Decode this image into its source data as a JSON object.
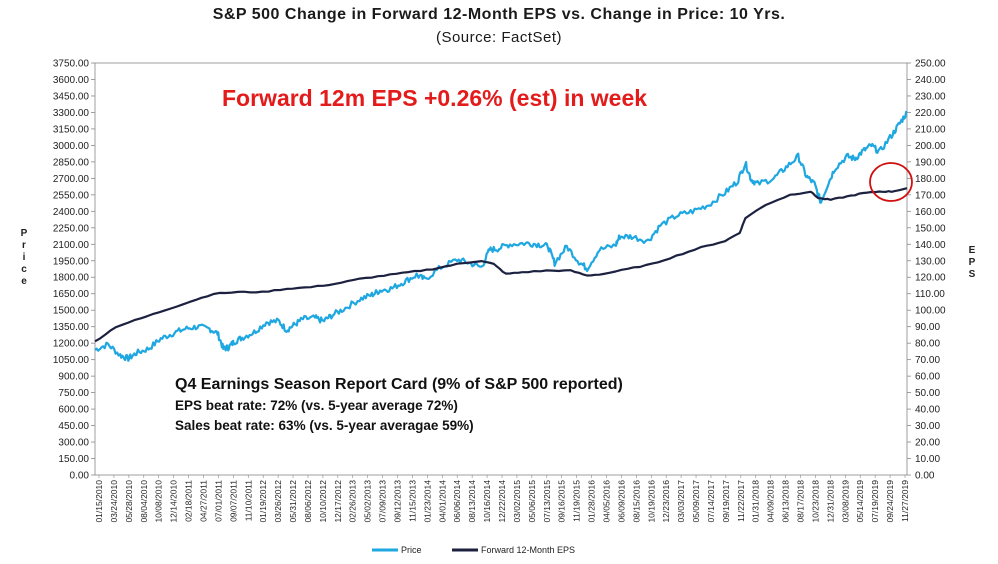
{
  "chart_data": {
    "type": "line",
    "title": "S&P 500 Change in Forward 12-Month EPS vs. Change in Price: 10 Yrs.",
    "subtitle": "(Source: FactSet)",
    "ylabel_left": "Price",
    "ylabel_right": "EPS",
    "ylim_left": [
      0,
      3750
    ],
    "ylim_right": [
      0,
      250
    ],
    "left_ticks": [
      "0.00",
      "150.00",
      "300.00",
      "450.00",
      "600.00",
      "750.00",
      "900.00",
      "1050.00",
      "1200.00",
      "1350.00",
      "1500.00",
      "1650.00",
      "1800.00",
      "1950.00",
      "2100.00",
      "2250.00",
      "2400.00",
      "2550.00",
      "2700.00",
      "2850.00",
      "3000.00",
      "3150.00",
      "3300.00",
      "3450.00",
      "3600.00",
      "3750.00"
    ],
    "right_ticks": [
      "0.00",
      "10.00",
      "20.00",
      "30.00",
      "40.00",
      "50.00",
      "60.00",
      "70.00",
      "80.00",
      "90.00",
      "100.00",
      "110.00",
      "120.00",
      "130.00",
      "140.00",
      "150.00",
      "160.00",
      "170.00",
      "180.00",
      "190.00",
      "200.00",
      "210.00",
      "220.00",
      "230.00",
      "240.00",
      "250.00"
    ],
    "x_labels": [
      "01/15/2010",
      "03/24/2010",
      "05/28/2010",
      "08/04/2010",
      "10/08/2010",
      "12/14/2010",
      "02/18/2011",
      "04/27/2011",
      "07/01/2011",
      "09/07/2011",
      "11/10/2011",
      "01/19/2012",
      "03/26/2012",
      "05/31/2012",
      "08/06/2012",
      "10/10/2012",
      "12/17/2012",
      "02/26/2013",
      "05/02/2013",
      "07/09/2013",
      "09/12/2013",
      "11/15/2013",
      "01/23/2014",
      "04/01/2014",
      "06/06/2014",
      "08/13/2014",
      "10/16/2014",
      "12/22/2014",
      "03/02/2015",
      "05/06/2015",
      "07/13/2015",
      "09/16/2015",
      "11/19/2015",
      "01/28/2016",
      "04/05/2016",
      "06/09/2016",
      "08/15/2016",
      "10/19/2016",
      "12/23/2016",
      "03/03/2017",
      "05/09/2017",
      "07/14/2017",
      "09/19/2017",
      "11/22/2017",
      "01/31/2018",
      "04/09/2018",
      "06/13/2018",
      "08/17/2018",
      "10/23/2018",
      "12/31/2018",
      "03/08/2019",
      "05/14/2019",
      "07/19/2019",
      "09/24/2019",
      "11/27/2019"
    ],
    "series": [
      {
        "name": "Price",
        "axis": "left",
        "color": "#1ea7e1",
        "x": [
          2010.04,
          2010.2,
          2010.35,
          2010.45,
          2010.55,
          2010.7,
          2010.85,
          2011.0,
          2011.15,
          2011.3,
          2011.45,
          2011.55,
          2011.62,
          2011.68,
          2011.75,
          2011.85,
          2012.0,
          2012.15,
          2012.3,
          2012.4,
          2012.5,
          2012.6,
          2012.75,
          2012.85,
          2012.95,
          2013.1,
          2013.3,
          2013.45,
          2013.55,
          2013.7,
          2013.85,
          2014.0,
          2014.1,
          2014.3,
          2014.5,
          2014.65,
          2014.8,
          2014.9,
          2015.0,
          2015.15,
          2015.35,
          2015.5,
          2015.62,
          2015.7,
          2015.85,
          2016.0,
          2016.1,
          2016.25,
          2016.45,
          2016.5,
          2016.65,
          2016.85,
          2017.0,
          2017.2,
          2017.4,
          2017.6,
          2017.8,
          2017.95,
          2018.05,
          2018.12,
          2018.2,
          2018.4,
          2018.55,
          2018.7,
          2018.8,
          2018.9,
          2018.98,
          2019.05,
          2019.15,
          2019.3,
          2019.4,
          2019.5,
          2019.6,
          2019.7,
          2019.85,
          2019.95,
          2020.04
        ],
        "values": [
          1140,
          1190,
          1090,
          1060,
          1110,
          1150,
          1240,
          1290,
          1330,
          1350,
          1330,
          1290,
          1150,
          1160,
          1210,
          1250,
          1300,
          1390,
          1400,
          1320,
          1370,
          1420,
          1430,
          1400,
          1450,
          1510,
          1600,
          1640,
          1680,
          1700,
          1760,
          1820,
          1780,
          1890,
          1960,
          1930,
          1890,
          2050,
          2060,
          2100,
          2110,
          2100,
          2080,
          1930,
          2080,
          1940,
          1880,
          2050,
          2090,
          2170,
          2170,
          2130,
          2270,
          2360,
          2400,
          2460,
          2570,
          2670,
          2840,
          2690,
          2650,
          2700,
          2800,
          2900,
          2720,
          2650,
          2480,
          2620,
          2790,
          2900,
          2880,
          2950,
          3000,
          2940,
          3090,
          3200,
          3300
        ]
      },
      {
        "name": "Forward 12-Month EPS",
        "axis": "right",
        "color": "#1c2140",
        "x": [
          2010.04,
          2010.3,
          2010.6,
          2010.9,
          2011.2,
          2011.5,
          2011.8,
          2012.1,
          2012.4,
          2012.7,
          2013.0,
          2013.3,
          2013.6,
          2013.9,
          2014.2,
          2014.5,
          2014.8,
          2014.95,
          2015.1,
          2015.3,
          2015.6,
          2015.9,
          2016.1,
          2016.3,
          2016.6,
          2016.9,
          2017.2,
          2017.5,
          2017.8,
          2017.98,
          2018.05,
          2018.3,
          2018.6,
          2018.85,
          2018.95,
          2019.1,
          2019.3,
          2019.5,
          2019.7,
          2019.85,
          2020.04
        ],
        "values": [
          81,
          90,
          95,
          100,
          105,
          110,
          111,
          111,
          113,
          114,
          116,
          119,
          121,
          123,
          125,
          128,
          130,
          128,
          122,
          123,
          124,
          124,
          121,
          122,
          125,
          128,
          133,
          138,
          142,
          147,
          156,
          164,
          170,
          172,
          168,
          167,
          169,
          171,
          172,
          172,
          174
        ]
      }
    ],
    "annotations": {
      "headline": "Forward 12m EPS +0.26% (est) in week",
      "report_title": "Q4 Earnings Season Report Card (9% of S&P 500 reported)",
      "line1": "EPS beat rate: 72% (vs. 5-year average 72%)",
      "line2": "Sales beat rate: 63% (vs. 5-year averagae 59%)"
    },
    "colors": {
      "headline": "#e31b1b",
      "circle": "#d01010"
    }
  }
}
